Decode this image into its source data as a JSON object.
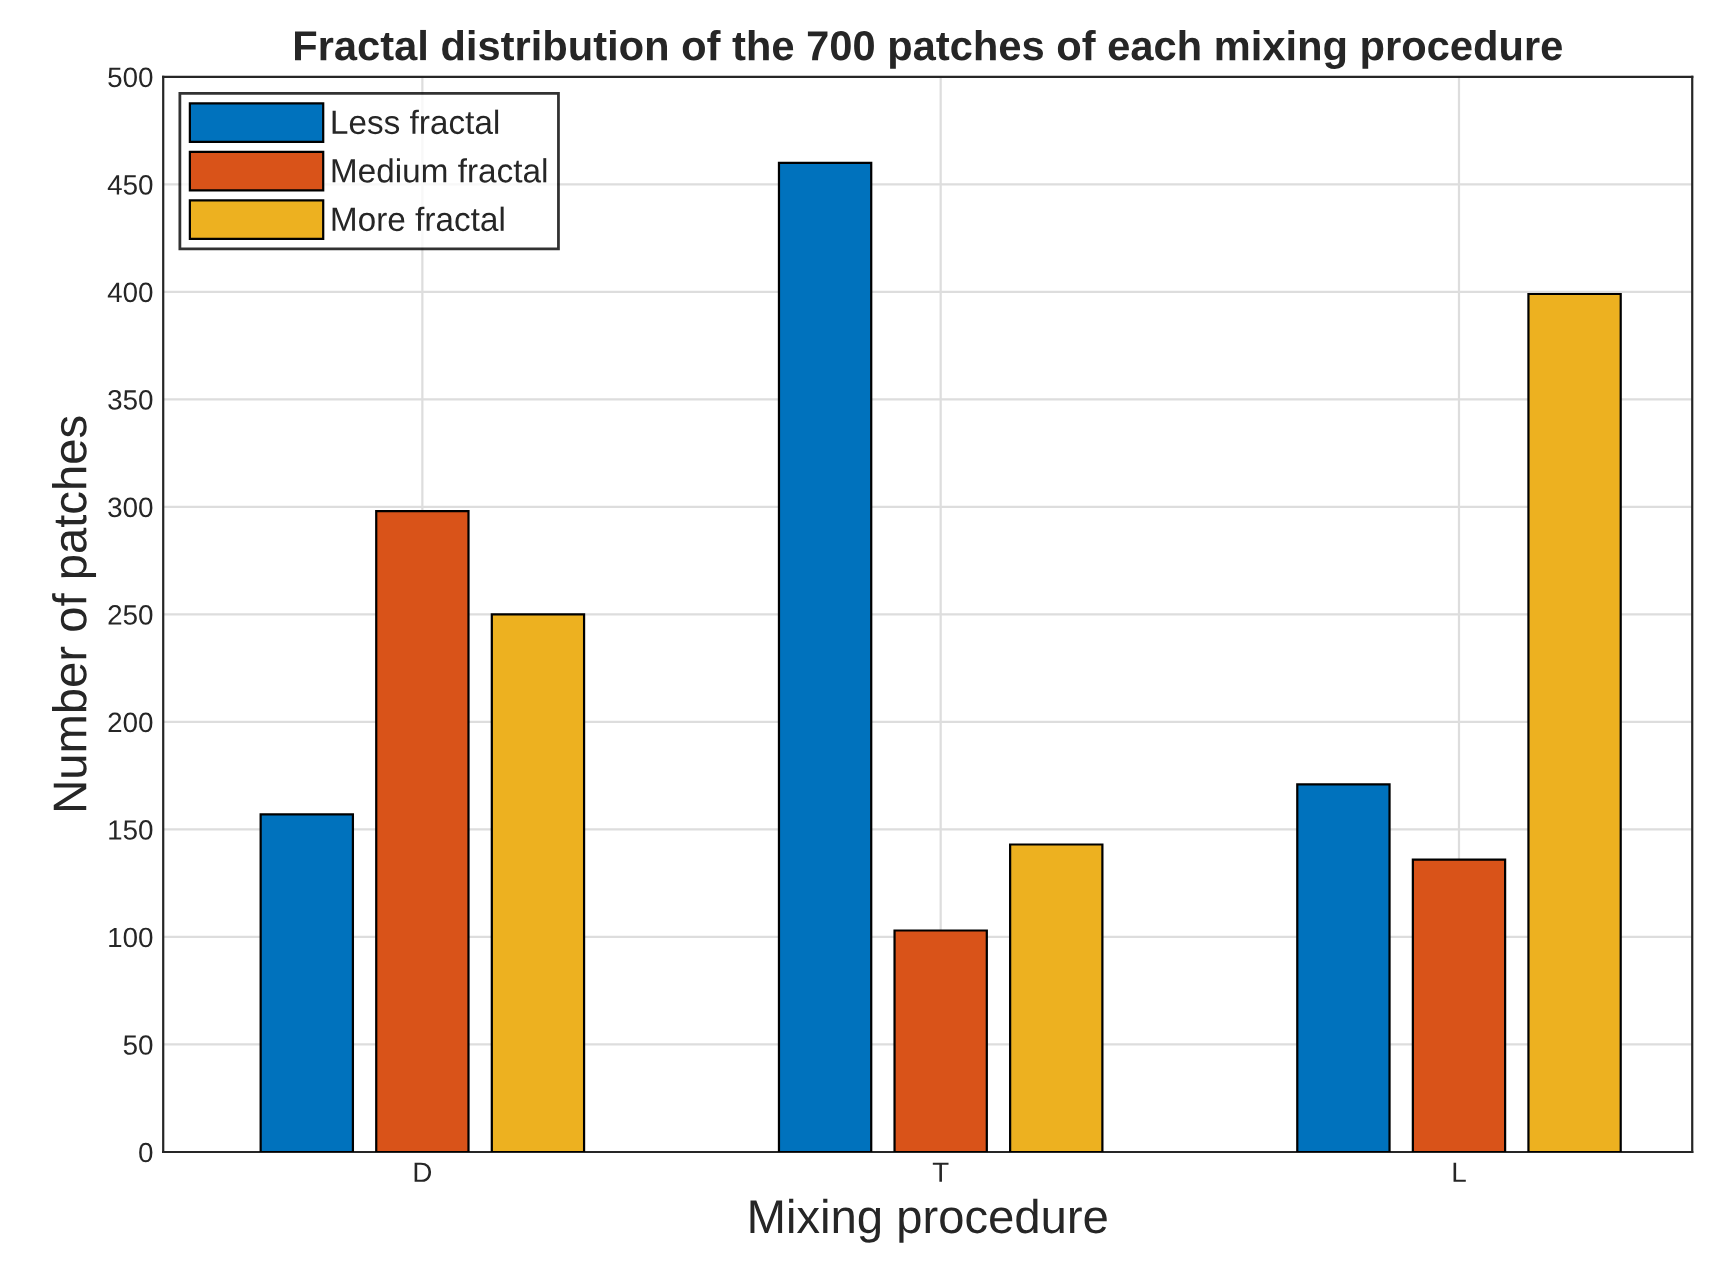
{
  "chart_data": {
    "type": "bar",
    "title": "Fractal distribution of the 700 patches of each mixing procedure",
    "xlabel": "Mixing procedure",
    "ylabel": "Number of patches",
    "categories": [
      "D",
      "T",
      "L"
    ],
    "series": [
      {
        "name": "Less fractal",
        "color": "#0072bd",
        "values": [
          157,
          460,
          171
        ]
      },
      {
        "name": "Medium fractal",
        "color": "#d95319",
        "values": [
          298,
          103,
          136
        ]
      },
      {
        "name": "More fractal",
        "color": "#edb120",
        "values": [
          250,
          143,
          399
        ]
      }
    ],
    "ylim": [
      0,
      500
    ],
    "yticks": [
      0,
      50,
      100,
      150,
      200,
      250,
      300,
      350,
      400,
      450,
      500
    ],
    "grid": true,
    "legend": "top left"
  }
}
